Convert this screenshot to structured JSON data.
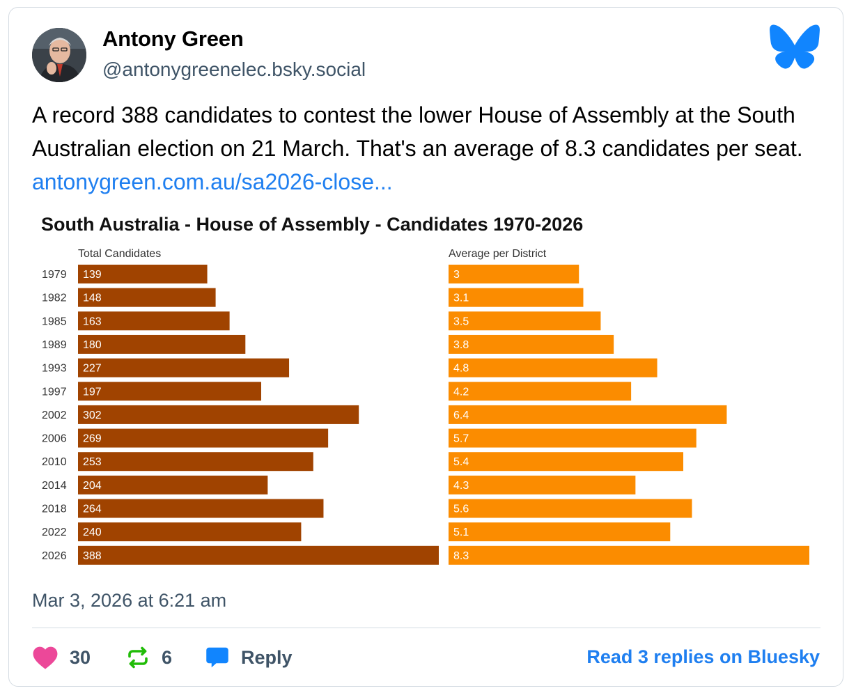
{
  "author": {
    "name": "Antony Green",
    "handle": "@antonygreenelec.bsky.social"
  },
  "post": {
    "text": "A record 388 candidates to contest the lower House of Assembly at the South Australian election on 21 March. That's an average of 8.3 candidates per seat. ",
    "link_text": "antonygreen.com.au/sa2026-close..."
  },
  "chart_data": {
    "type": "bar",
    "orientation": "horizontal",
    "title": "South Australia - House of Assembly - Candidates 1970-2026",
    "categories": [
      "1979",
      "1982",
      "1985",
      "1989",
      "1993",
      "1997",
      "2002",
      "2006",
      "2010",
      "2014",
      "2018",
      "2022",
      "2026"
    ],
    "series": [
      {
        "name": "Total Candidates",
        "values": [
          139,
          148,
          163,
          180,
          227,
          197,
          302,
          269,
          253,
          204,
          264,
          240,
          388
        ],
        "color": "#a04300"
      },
      {
        "name": "Average per District",
        "values": [
          3,
          3.1,
          3.5,
          3.8,
          4.8,
          4.2,
          6.4,
          5.7,
          5.4,
          4.3,
          5.6,
          5.1,
          8.3
        ],
        "color": "#fb8c00"
      }
    ],
    "xlim_total": [
      0,
      388
    ],
    "xlim_average": [
      0,
      8.3
    ],
    "grid": false,
    "legend": "none"
  },
  "timestamp": "Mar 3, 2026 at 6:21 am",
  "footer": {
    "likes": "30",
    "reposts": "6",
    "reply_label": "Reply",
    "read_replies": "Read 3 replies on Bluesky"
  },
  "colors": {
    "accent": "#1f7ff0",
    "like": "#ec4899",
    "repost": "#20bc07",
    "muted": "#3f5467"
  },
  "icons": {
    "like": "heart-icon",
    "repost": "repost-icon",
    "reply": "speech-bubble-icon",
    "logo": "bluesky-butterfly-icon"
  }
}
